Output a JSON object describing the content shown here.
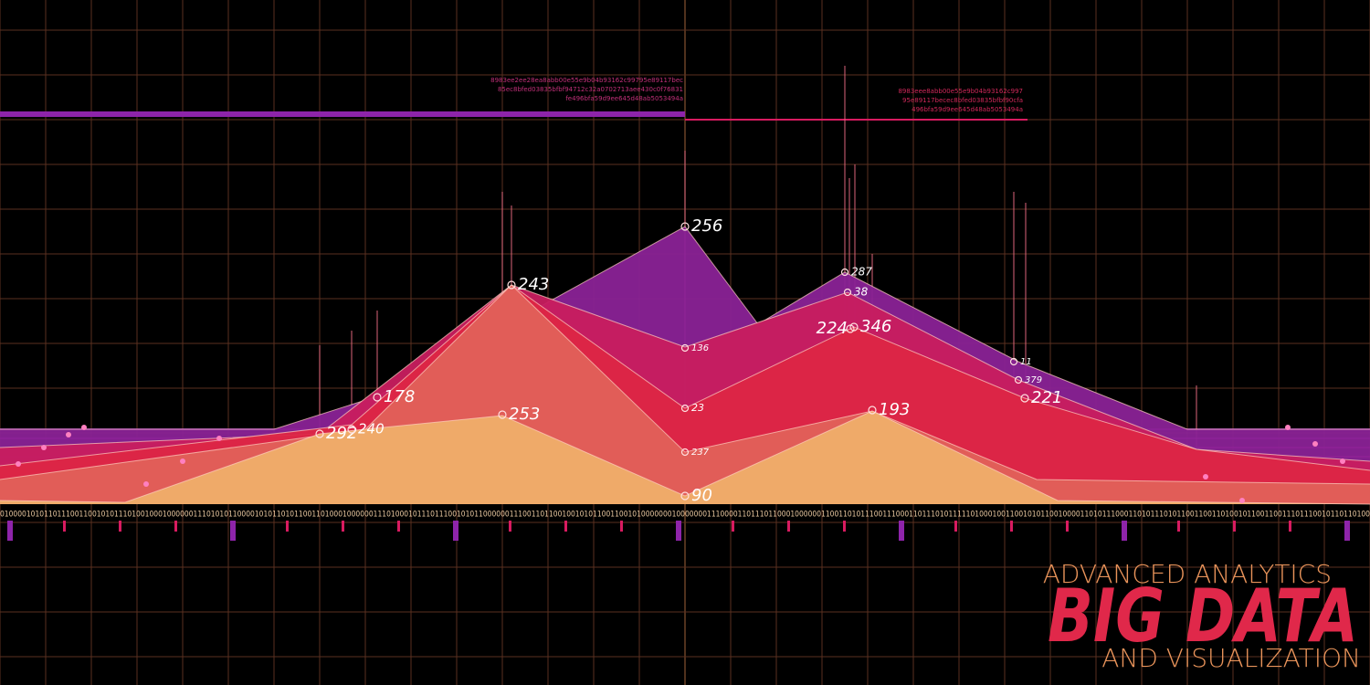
{
  "hash_left": [
    "8983ee2ee28ea8abb00e55e9b04b93162c99795e89117bec",
    "85ec8bfed03835bfbf94712c32a0702713aee430c0f76831",
    "fe496bfa59d9ee645d48ab5053494a"
  ],
  "hash_right": [
    "8983eee8abb00e55e9b04b93162c997",
    "95e89117becec8bfed03835bfbf90cfa",
    "496bfa59d9ee645d48ab5053494a"
  ],
  "binary": "010000101011011100110010101110100100010000001110101011000010101101011001101000100000011101000101110111001010110000001110011011001001010110011001010000000100000001110000110111011000100000011001101011100111000110111010111110100010011001010110010000110101110001101011101011001100110100101100110011101110010110110100",
  "labels": [
    "256",
    "243",
    "178",
    "292",
    "240",
    "253",
    "90",
    "193",
    "224",
    "346",
    "287",
    "38",
    "136",
    "23",
    "237",
    "11",
    "379",
    "221"
  ],
  "title": {
    "line1": "ADVANCED ANALYTICS",
    "line2": "BIG DATA",
    "line3": "AND VISUALIZATION"
  }
}
